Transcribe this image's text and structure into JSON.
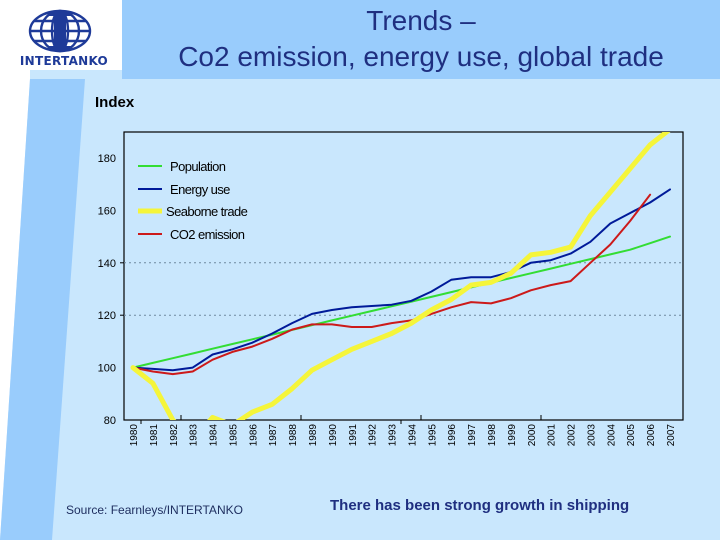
{
  "header": {
    "logo_text": "INTERTANKO",
    "title_line1": "Trends –",
    "title_line2": "Co2 emission, energy use, global  trade"
  },
  "footer": {
    "source": "Source: Fearnleys/INTERTANKO",
    "caption": "There has been strong growth in shipping"
  },
  "colors": {
    "population": "#33dd33",
    "energy_use": "#001a99",
    "seaborne_trade": "#f5f53a",
    "co2_emission": "#cc1a1a",
    "title_text": "#1f2f80",
    "title_band": "#99ccfc",
    "page_bg": "#c9e7fd"
  },
  "chart_data": {
    "type": "line",
    "title": "",
    "ylabel": "Index",
    "xlabel": "",
    "ylim": [
      80,
      180
    ],
    "yticks": [
      80,
      100,
      120,
      140,
      160,
      180
    ],
    "grid": "horizontal dotted at 120 and 140",
    "legend_position": "top-left",
    "x": [
      "1980",
      "1981",
      "1982",
      "1983",
      "1984",
      "1985",
      "1986",
      "1987",
      "1988",
      "1989",
      "1990",
      "1991",
      "1992",
      "1993",
      "1994",
      "1995",
      "1996",
      "1997",
      "1998",
      "1999",
      "2000",
      "2001",
      "2002",
      "2003",
      "2004",
      "2005",
      "2006",
      "2007"
    ],
    "series": [
      {
        "name": "Population",
        "key": "population",
        "values": [
          100,
          101.8,
          103.6,
          105.4,
          107.2,
          109,
          110.8,
          112.6,
          114.4,
          116.2,
          118,
          119.8,
          121.6,
          123.4,
          125.2,
          127,
          128.8,
          130.6,
          132.4,
          134.2,
          136,
          137.8,
          139.6,
          141.4,
          143.2,
          145,
          147.5,
          150
        ]
      },
      {
        "name": "Energy use",
        "key": "energy_use",
        "values": [
          100,
          99.5,
          99,
          100,
          105,
          107,
          109.5,
          113,
          117,
          120.5,
          122,
          123,
          123.5,
          124,
          125.5,
          129,
          133.5,
          134.5,
          134.5,
          136.5,
          140,
          141,
          143.5,
          148,
          155,
          159,
          163,
          168
        ]
      },
      {
        "name": "Seaborne trade",
        "key": "seaborne_trade",
        "values": [
          100,
          94,
          80,
          72,
          81,
          78,
          83,
          86,
          92,
          99,
          103,
          107,
          110,
          113,
          117,
          122,
          126,
          131.5,
          132.5,
          136,
          143,
          144,
          146,
          158,
          167,
          176,
          185,
          191
        ]
      },
      {
        "name": "CO2 emission",
        "key": "co2_emission",
        "values": [
          100,
          98.5,
          97.5,
          98.5,
          103,
          106,
          108,
          111,
          114.5,
          116.5,
          116.5,
          115.5,
          115.5,
          117,
          118,
          120.5,
          123,
          125,
          124.5,
          126.5,
          129.5,
          131.5,
          133,
          140,
          147,
          156,
          166,
          null
        ]
      }
    ]
  }
}
